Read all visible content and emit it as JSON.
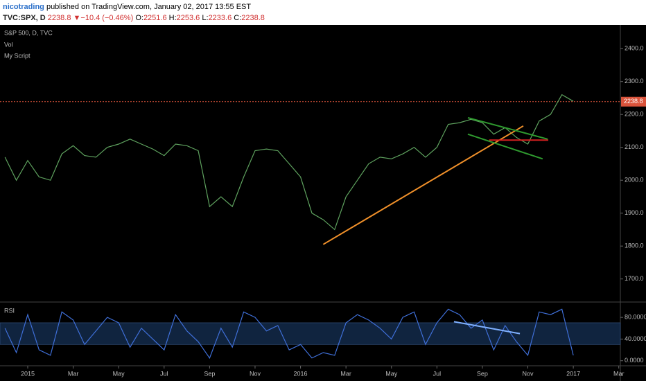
{
  "header": {
    "author": "nicotrading",
    "published": " published on TradingView.com, January 02, 2017 13:55 EST",
    "symbol": "TVC:SPX, D",
    "last": "2238.8",
    "arrow": "▼",
    "change": "−10.4 (−0.46%)",
    "open_label": "O:",
    "open": "2251.6",
    "high_label": "H:",
    "high": "2253.6",
    "low_label": "L:",
    "low": "2233.6",
    "close_label": "C:",
    "close": "2238.8"
  },
  "chart_data": [
    {
      "type": "line",
      "title": "S&P 500, D, TVC",
      "studies": [
        "Vol",
        "My Script"
      ],
      "x": [
        -1,
        -0.5,
        0,
        0.5,
        1,
        1.5,
        2,
        2.5,
        3,
        3.5,
        4,
        4.5,
        5,
        5.5,
        6,
        6.5,
        7,
        7.5,
        8,
        8.5,
        9,
        9.5,
        10,
        10.5,
        11,
        11.5,
        12,
        12.5,
        13,
        13.5,
        14,
        14.5,
        15,
        15.5,
        16,
        16.5,
        17,
        17.5,
        18,
        18.5,
        19,
        19.5,
        20,
        20.5,
        21,
        21.5,
        22,
        22.5,
        23,
        23.5,
        24
      ],
      "series": [
        {
          "name": "S&P 500",
          "color": "#5fa35f",
          "values": [
            2070,
            2000,
            2060,
            2010,
            2000,
            2080,
            2105,
            2075,
            2070,
            2100,
            2110,
            2125,
            2110,
            2095,
            2075,
            2110,
            2105,
            2090,
            1920,
            1950,
            1920,
            2010,
            2090,
            2095,
            2090,
            2050,
            2010,
            1900,
            1880,
            1850,
            1950,
            2000,
            2050,
            2070,
            2065,
            2080,
            2100,
            2070,
            2100,
            2170,
            2175,
            2185,
            2175,
            2140,
            2160,
            2130,
            2110,
            2180,
            2200,
            2260,
            2240
          ]
        }
      ],
      "last_price": 2238.8,
      "trendlines": [
        {
          "color": "#f0902a",
          "x": [
            13.0,
            21.8
          ],
          "y": [
            1805,
            2165
          ]
        },
        {
          "color": "#d62020",
          "x": [
            20.3,
            22.9
          ],
          "y": [
            2122,
            2122
          ]
        },
        {
          "color": "#2f9a2f",
          "x": [
            19.36,
            22.87
          ],
          "y": [
            2190,
            2125
          ]
        },
        {
          "color": "#2f9a2f",
          "x": [
            19.36,
            22.65
          ],
          "y": [
            2140,
            2065
          ]
        }
      ],
      "xlim": [
        -1.22,
        26.07
      ],
      "ylim": [
        1632,
        2472
      ],
      "yticks": [
        {
          "value": 1700,
          "label": "1700.0"
        },
        {
          "value": 1800,
          "label": "1800.0"
        },
        {
          "value": 1900,
          "label": "1900.0"
        },
        {
          "value": 2000,
          "label": "2000.0"
        },
        {
          "value": 2100,
          "label": "2100.0"
        },
        {
          "value": 2200,
          "label": "2200.0"
        },
        {
          "value": 2300,
          "label": "2300.0"
        },
        {
          "value": 2400,
          "label": "2400.0"
        }
      ]
    },
    {
      "type": "line",
      "title": "RSI",
      "x": [
        -1,
        -0.5,
        0,
        0.5,
        1,
        1.5,
        2,
        2.5,
        3,
        3.5,
        4,
        4.5,
        5,
        5.5,
        6,
        6.5,
        7,
        7.5,
        8,
        8.5,
        9,
        9.5,
        10,
        10.5,
        11,
        11.5,
        12,
        12.5,
        13,
        13.5,
        14,
        14.5,
        15,
        15.5,
        16,
        16.5,
        17,
        17.5,
        18,
        18.5,
        19,
        19.5,
        20,
        20.5,
        21,
        21.5,
        22,
        22.5,
        23,
        23.5,
        24
      ],
      "series": [
        {
          "name": "RSI",
          "color": "#3f6fd8",
          "values": [
            60,
            15,
            85,
            20,
            10,
            90,
            75,
            30,
            55,
            80,
            70,
            25,
            60,
            40,
            20,
            85,
            55,
            35,
            5,
            60,
            25,
            90,
            80,
            55,
            65,
            20,
            30,
            5,
            15,
            10,
            70,
            85,
            75,
            60,
            40,
            80,
            90,
            30,
            70,
            95,
            85,
            60,
            75,
            20,
            65,
            35,
            10,
            90,
            85,
            95,
            10
          ]
        }
      ],
      "band": [
        30,
        70
      ],
      "trendlines": [
        {
          "color": "#7fb0ff",
          "x": [
            18.75,
            21.65
          ],
          "y": [
            72,
            50
          ]
        }
      ],
      "xlim": [
        -1.22,
        26.07
      ],
      "ylim": [
        -8,
        107
      ],
      "yticks": [
        {
          "value": 0,
          "label": "0.0000"
        },
        {
          "value": 40,
          "label": "40.0000"
        },
        {
          "value": 80,
          "label": "80.0000"
        }
      ],
      "xticks": [
        {
          "value": 0,
          "label": "2015"
        },
        {
          "value": 2,
          "label": "Mar"
        },
        {
          "value": 4,
          "label": "May"
        },
        {
          "value": 6,
          "label": "Jul"
        },
        {
          "value": 8,
          "label": "Sep"
        },
        {
          "value": 10,
          "label": "Nov"
        },
        {
          "value": 12,
          "label": "2016"
        },
        {
          "value": 14,
          "label": "Mar"
        },
        {
          "value": 16,
          "label": "May"
        },
        {
          "value": 18,
          "label": "Jul"
        },
        {
          "value": 20,
          "label": "Sep"
        },
        {
          "value": 22,
          "label": "Nov"
        },
        {
          "value": 24,
          "label": "2017"
        },
        {
          "value": 26,
          "label": "Mar"
        }
      ]
    }
  ]
}
